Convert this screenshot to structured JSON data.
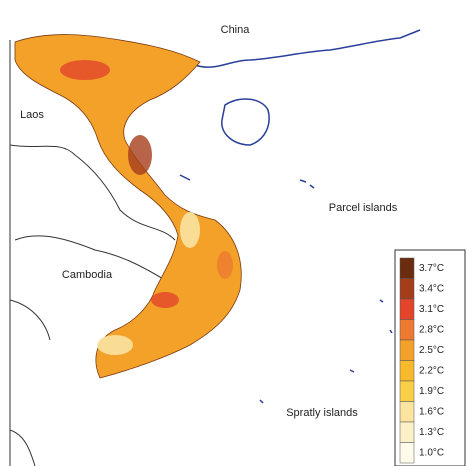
{
  "labels": {
    "china": "China",
    "laos": "Laos",
    "cambodia": "Cambodia",
    "parcel": "Parcel islands",
    "spratly": "Spratly islands"
  },
  "legend": {
    "items": [
      {
        "label": "3.7°C",
        "color": "#6b2c10"
      },
      {
        "label": "3.4°C",
        "color": "#a53d1c"
      },
      {
        "label": "3.1°C",
        "color": "#e2452a"
      },
      {
        "label": "2.8°C",
        "color": "#ee7a30"
      },
      {
        "label": "2.5°C",
        "color": "#f4a12a"
      },
      {
        "label": "2.2°C",
        "color": "#f7ba2c"
      },
      {
        "label": "1.9°C",
        "color": "#f9cf48"
      },
      {
        "label": "1.6°C",
        "color": "#fbe3a0"
      },
      {
        "label": "1.3°C",
        "color": "#fcf0c8"
      },
      {
        "label": "1.0°C",
        "color": "#fefbea"
      }
    ]
  }
}
